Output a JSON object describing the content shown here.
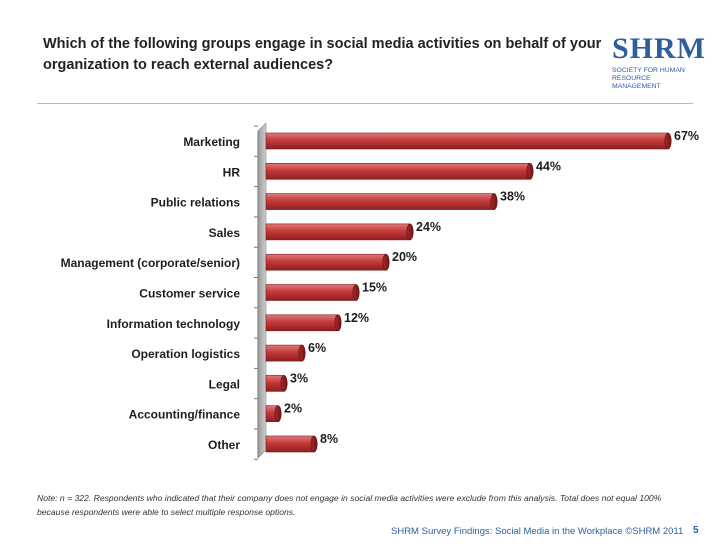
{
  "header": {
    "title": "Which of the following groups engage in social media activities on behalf of your organization to reach external audiences?"
  },
  "logo": {
    "mark": "SHRM",
    "sub": "Society for Human Resource Management"
  },
  "chart_data": {
    "type": "bar",
    "orientation": "horizontal",
    "categories": [
      "Marketing",
      "HR",
      "Public relations",
      "Sales",
      "Management (corporate/senior)",
      "Customer service",
      "Information technology",
      "Operation logistics",
      "Legal",
      "Accounting/finance",
      "Other"
    ],
    "values": [
      67,
      44,
      38,
      24,
      20,
      15,
      12,
      6,
      3,
      2,
      8
    ],
    "value_labels": [
      "67%",
      "44%",
      "38%",
      "24%",
      "20%",
      "15%",
      "12%",
      "6%",
      "3%",
      "2%",
      "8%"
    ],
    "unit": "%",
    "xlim": [
      0,
      70
    ],
    "bar_color": "#c43a3a",
    "grid": false,
    "legend": "none"
  },
  "note": "Note: n = 322. Respondents who indicated that their company does not engage in social media activities were exclude from this analysis. Total does not equal 100% because respondents were able to select multiple response options.",
  "footer": {
    "source": "SHRM Survey Findings: Social Media in the Workplace ©SHRM 2011",
    "page": "5"
  }
}
